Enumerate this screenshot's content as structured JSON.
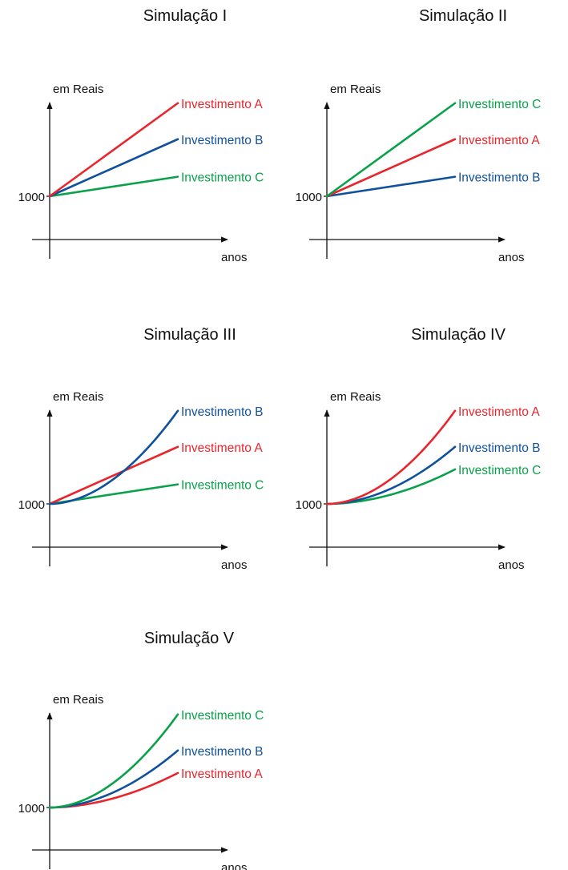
{
  "colors": {
    "A": "#e8262d",
    "B": "#10519c",
    "C": "#0aa14b",
    "axis": "#111111"
  },
  "chart_data": [
    {
      "type": "line",
      "title": "Simulação I",
      "ylabel": "em Reais",
      "xlabel": "anos",
      "y_tick_label": "1000",
      "growth": "linear",
      "series": [
        {
          "name": "Investimento A",
          "key": "A",
          "end_value": 3.1
        },
        {
          "name": "Investimento B",
          "key": "B",
          "end_value": 1.9
        },
        {
          "name": "Investimento C",
          "key": "C",
          "end_value": 0.65
        }
      ]
    },
    {
      "type": "line",
      "title": "Simulação II",
      "ylabel": "em Reais",
      "xlabel": "anos",
      "y_tick_label": "1000",
      "growth": "linear",
      "series": [
        {
          "name": "Investimento C",
          "key": "C",
          "end_value": 3.1
        },
        {
          "name": "Investimento A",
          "key": "A",
          "end_value": 1.9
        },
        {
          "name": "Investimento B",
          "key": "B",
          "end_value": 0.65
        }
      ]
    },
    {
      "type": "line",
      "title": "Simulação III",
      "ylabel": "em Reais",
      "xlabel": "anos",
      "y_tick_label": "1000",
      "series": [
        {
          "name": "Investimento B",
          "key": "B",
          "end_value": 3.1,
          "growth": "exponential"
        },
        {
          "name": "Investimento A",
          "key": "A",
          "end_value": 1.9,
          "growth": "linear"
        },
        {
          "name": "Investimento C",
          "key": "C",
          "end_value": 0.65,
          "growth": "linear"
        }
      ]
    },
    {
      "type": "line",
      "title": "Simulação IV",
      "ylabel": "em Reais",
      "xlabel": "anos",
      "y_tick_label": "1000",
      "growth": "exponential",
      "series": [
        {
          "name": "Investimento A",
          "key": "A",
          "end_value": 3.1
        },
        {
          "name": "Investimento B",
          "key": "B",
          "end_value": 1.9
        },
        {
          "name": "Investimento C",
          "key": "C",
          "end_value": 1.15
        }
      ]
    },
    {
      "type": "line",
      "title": "Simulação V",
      "ylabel": "em Reais",
      "xlabel": "anos",
      "y_tick_label": "1000",
      "growth": "exponential",
      "series": [
        {
          "name": "Investimento C",
          "key": "C",
          "end_value": 3.1
        },
        {
          "name": "Investimento B",
          "key": "B",
          "end_value": 1.9
        },
        {
          "name": "Investimento A",
          "key": "A",
          "end_value": 1.15
        }
      ]
    }
  ]
}
